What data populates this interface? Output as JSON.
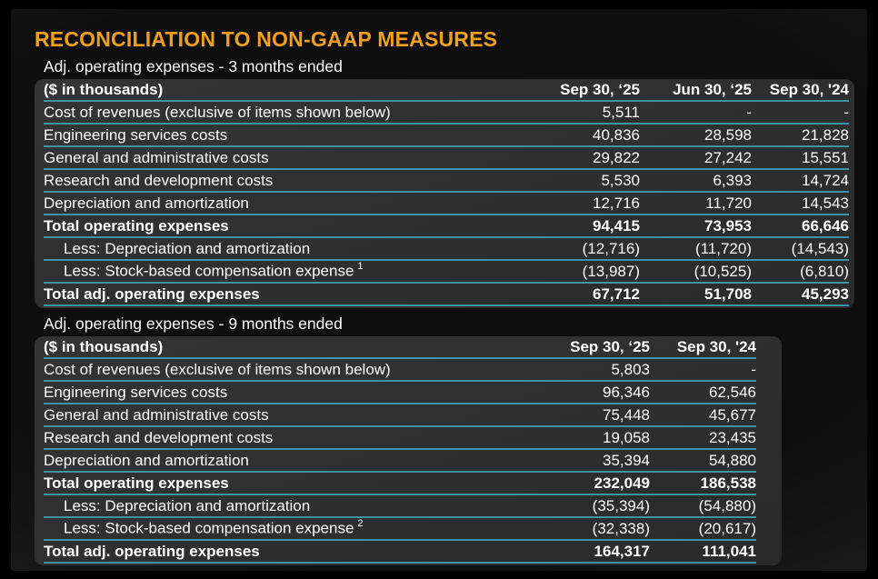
{
  "title": "RECONCILIATION TO NON-GAAP MEASURES",
  "colors": {
    "title_orange": "#F0A01E",
    "row_line_teal": "#3F94A4",
    "panel_background": "#2E2E2E",
    "text": "#FFFFFF",
    "slide_background": "#141414"
  },
  "tables": [
    {
      "section_label": "Adj. operating expenses - 3 months ended",
      "unit_label": "($ in thousands)",
      "columns": [
        "Sep 30, ‘25",
        "Jun 30, ‘25",
        "Sep 30, '24"
      ],
      "rows": [
        {
          "label": "Cost of revenues (exclusive of items shown below)",
          "style": "normal",
          "values": [
            "5,511",
            "-",
            "-"
          ]
        },
        {
          "label": "Engineering services costs",
          "style": "normal",
          "values": [
            "40,836",
            "28,598",
            "21,828"
          ]
        },
        {
          "label": "General and administrative costs",
          "style": "normal",
          "values": [
            "29,822",
            "27,242",
            "15,551"
          ]
        },
        {
          "label": "Research and development costs",
          "style": "normal",
          "values": [
            "5,530",
            "6,393",
            "14,724"
          ]
        },
        {
          "label": "Depreciation and amortization",
          "style": "normal",
          "values": [
            "12,716",
            "11,720",
            "14,543"
          ]
        },
        {
          "label": "Total operating expenses",
          "style": "total",
          "values": [
            "94,415",
            "73,953",
            "66,646"
          ]
        },
        {
          "label": "Less: Depreciation and amortization",
          "style": "less",
          "values": [
            "(12,716)",
            "(11,720)",
            "(14,543)"
          ]
        },
        {
          "label": "Less: Stock-based compensation expense",
          "sup": "1",
          "style": "less",
          "values": [
            "(13,987)",
            "(10,525)",
            "(6,810)"
          ]
        },
        {
          "label": "Total adj. operating expenses",
          "style": "total",
          "values": [
            "67,712",
            "51,708",
            "45,293"
          ]
        }
      ]
    },
    {
      "section_label": "Adj. operating expenses - 9 months ended",
      "unit_label": "($ in thousands)",
      "columns": [
        "Sep 30, ‘25",
        "Sep 30, '24"
      ],
      "rows": [
        {
          "label": "Cost of revenues (exclusive of items shown below)",
          "style": "normal",
          "values": [
            "5,803",
            "-"
          ]
        },
        {
          "label": "Engineering services costs",
          "style": "normal",
          "values": [
            "96,346",
            "62,546"
          ]
        },
        {
          "label": "General and administrative costs",
          "style": "normal",
          "values": [
            "75,448",
            "45,677"
          ]
        },
        {
          "label": "Research and development costs",
          "style": "normal",
          "values": [
            "19,058",
            "23,435"
          ]
        },
        {
          "label": "Depreciation and amortization",
          "style": "normal",
          "values": [
            "35,394",
            "54,880"
          ]
        },
        {
          "label": "Total operating expenses",
          "style": "total",
          "values": [
            "232,049",
            "186,538"
          ]
        },
        {
          "label": "Less: Depreciation and amortization",
          "style": "less",
          "values": [
            "(35,394)",
            "(54,880)"
          ]
        },
        {
          "label": "Less: Stock-based compensation expense",
          "sup": "2",
          "style": "less",
          "values": [
            "(32,338)",
            "(20,617)"
          ]
        },
        {
          "label": "Total adj. operating expenses",
          "style": "total",
          "values": [
            "164,317",
            "111,041"
          ]
        }
      ]
    }
  ]
}
